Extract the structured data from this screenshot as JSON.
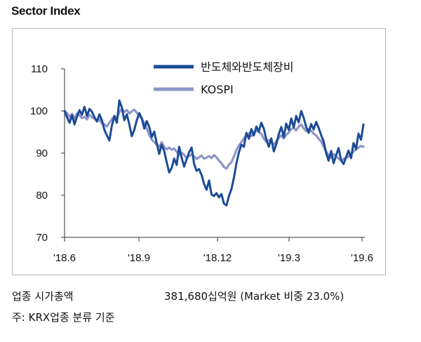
{
  "title": "Sector Index",
  "footer": {
    "left": "업종 시가총액",
    "right": "381,680십억원 (Market 비중 23.0%)",
    "note": "주: KRX업종 분류 기준"
  },
  "chart_data": {
    "type": "line",
    "title": "Sector Index",
    "ylim": [
      70,
      110
    ],
    "yticks": [
      70,
      80,
      90,
      100,
      110
    ],
    "xticks": [
      "'18.6",
      "'18.9",
      "'18.12",
      "'19.3",
      "'19.6"
    ],
    "x_start": "2018-06-01",
    "x_end": "2019-06-30",
    "legend_position": "top-right",
    "grid": false,
    "series": [
      {
        "name": "반도체와반도체장비",
        "color": "#1b4b96",
        "values": [
          100.0,
          98.5,
          97.2,
          99.0,
          96.8,
          98.7,
          100.2,
          99.1,
          101.0,
          98.8,
          100.5,
          99.8,
          98.5,
          97.5,
          99.2,
          97.8,
          95.5,
          94.2,
          93.0,
          96.5,
          98.7,
          97.2,
          102.5,
          100.8,
          97.8,
          99.2,
          96.8,
          94.0,
          95.5,
          97.8,
          99.5,
          98.2,
          95.8,
          97.6,
          96.2,
          93.8,
          95.1,
          92.4,
          89.8,
          92.0,
          90.5,
          87.8,
          85.4,
          86.5,
          88.7,
          87.2,
          91.5,
          88.9,
          86.8,
          88.5,
          90.2,
          91.3,
          87.5,
          85.8,
          86.2,
          84.8,
          82.7,
          81.3,
          83.5,
          80.2,
          79.8,
          80.5,
          79.5,
          80.3,
          78.0,
          77.6,
          79.8,
          81.5,
          84.2,
          87.5,
          90.2,
          92.0,
          91.5,
          94.8,
          93.4,
          95.7,
          94.2,
          96.3,
          95.1,
          97.2,
          95.8,
          93.2,
          91.5,
          93.5,
          90.4,
          92.1,
          94.5,
          96.2,
          93.8,
          97.0,
          95.5,
          98.2,
          96.1,
          98.8,
          97.3,
          100.0,
          98.4,
          96.2,
          94.8,
          96.9,
          95.6,
          97.4,
          96.0,
          94.3,
          92.8,
          90.0,
          88.2,
          90.5,
          87.6,
          89.4,
          91.2,
          88.3,
          87.4,
          89.0,
          90.6,
          88.8,
          92.4,
          91.0,
          94.6,
          93.2,
          96.8
        ]
      },
      {
        "name": "KOSPI",
        "color": "#8f95c8",
        "values": [
          100.0,
          99.5,
          98.6,
          99.3,
          98.2,
          99.4,
          99.0,
          98.3,
          98.6,
          98.0,
          99.1,
          98.5,
          98.2,
          97.6,
          97.9,
          97.1,
          96.8,
          96.3,
          97.2,
          98.0,
          98.9,
          98.4,
          99.7,
          100.5,
          99.8,
          100.2,
          99.4,
          99.9,
          100.3,
          99.6,
          98.8,
          98.2,
          97.1,
          95.8,
          94.3,
          93.2,
          92.6,
          92.0,
          91.5,
          92.6,
          91.4,
          90.9,
          91.3,
          90.8,
          91.1,
          90.3,
          89.5,
          90.1,
          89.6,
          88.8,
          89.3,
          89.7,
          89.2,
          88.6,
          89.0,
          89.4,
          88.7,
          88.9,
          89.3,
          88.8,
          89.5,
          89.0,
          88.2,
          87.6,
          86.7,
          86.3,
          87.3,
          87.8,
          89.2,
          90.7,
          91.8,
          92.6,
          93.5,
          94.2,
          94.7,
          94.0,
          94.8,
          95.3,
          95.0,
          94.6,
          93.4,
          92.7,
          93.1,
          92.6,
          92.0,
          92.9,
          93.6,
          94.2,
          93.5,
          94.3,
          94.9,
          95.7,
          96.0,
          95.4,
          96.3,
          96.8,
          95.9,
          95.2,
          95.7,
          95.3,
          94.6,
          94.2,
          93.4,
          92.8,
          91.6,
          90.4,
          89.5,
          88.9,
          89.8,
          89.2,
          88.7,
          88.2,
          88.6,
          88.9,
          89.2,
          89.7,
          90.4,
          90.8,
          91.3,
          91.7,
          91.5
        ]
      }
    ]
  }
}
